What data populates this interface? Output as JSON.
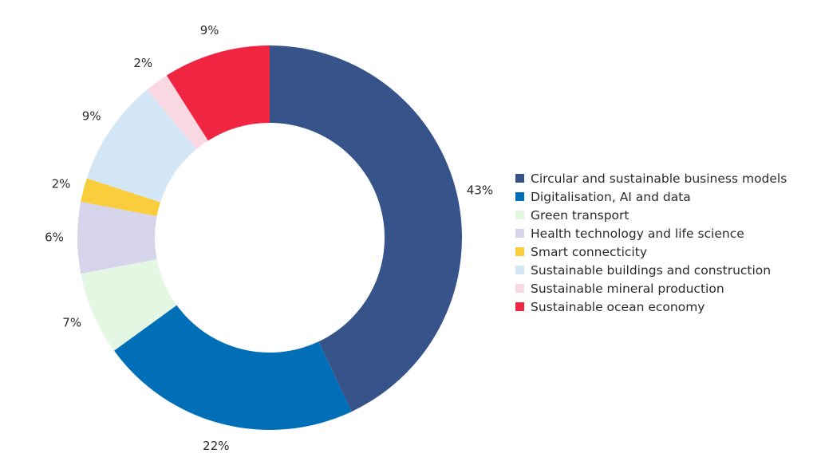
{
  "chart_data": {
    "type": "pie",
    "donut": true,
    "categories": [
      "Circular and sustainable business models",
      "Digitalisation, AI and data",
      "Green transport",
      "Health technology and life science",
      "Smart connecticity",
      "Sustainable buildings and construction",
      "Sustainable mineral production",
      "Sustainable ocean economy"
    ],
    "values": [
      43,
      22,
      7,
      6,
      2,
      9,
      2,
      9
    ],
    "labels": [
      "43%",
      "22%",
      "7%",
      "6%",
      "2%",
      "9%",
      "2%",
      "9%"
    ],
    "colors": [
      "#36548a",
      "#006fb8",
      "#e3f7e3",
      "#d6d4ea",
      "#f9cd3b",
      "#d3e6f6",
      "#fad8e2",
      "#ef2542"
    ],
    "legend_position": "right",
    "title": "",
    "grid": false
  }
}
